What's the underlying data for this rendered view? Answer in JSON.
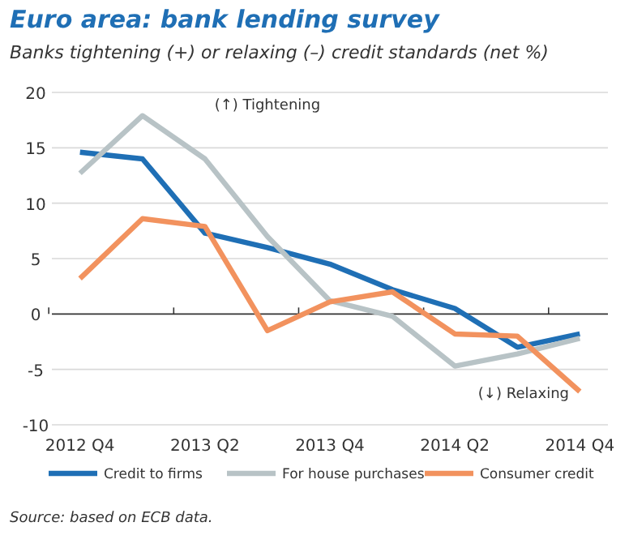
{
  "chart_data": {
    "type": "line",
    "title": "Euro area: bank lending survey",
    "subtitle": "Banks tightening (+) or relaxing (–) credit standards (net %)",
    "categories": [
      "2012 Q4",
      null,
      "2013 Q2",
      null,
      "2013 Q4",
      null,
      "2014 Q2",
      null,
      "2014 Q4"
    ],
    "series": [
      {
        "name": "Credit to firms",
        "color": "#1f6fb5",
        "values": [
          14.6,
          14,
          7.3,
          6,
          4.5,
          2.2,
          0.5,
          -3,
          -1.8
        ]
      },
      {
        "name": "For house purchases",
        "color": "#b8c3c6",
        "values": [
          12.7,
          17.9,
          14,
          7,
          1.2,
          -0.2,
          -4.7,
          -3.6,
          -2.2
        ]
      },
      {
        "name": "Consumer credit",
        "color": "#f2925e",
        "values": [
          3.2,
          8.6,
          7.9,
          -1.5,
          1.1,
          2.0,
          -1.8,
          -2.0,
          -7.0
        ]
      }
    ],
    "ylim": [
      -10,
      20
    ],
    "yticks": [
      -10,
      -5,
      0,
      5,
      10,
      15,
      20
    ],
    "grid": "y",
    "legend": "bottom",
    "marker": "none",
    "line_style": "solid",
    "annotations": [
      "(↑) Tightening",
      "(↓) Relaxing",
      "Source: based on ECB data."
    ]
  }
}
